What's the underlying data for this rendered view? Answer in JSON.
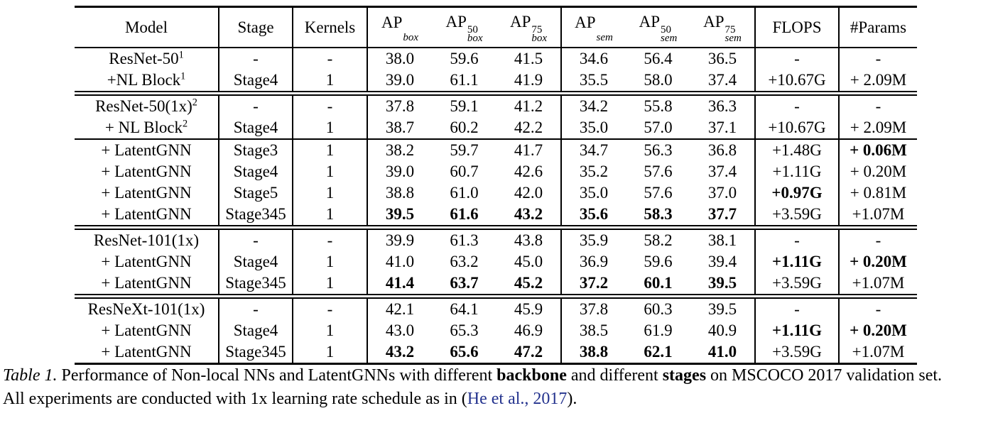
{
  "colors": {
    "text": "#000000",
    "rule": "#000000",
    "citation": "#24338e",
    "background": "#ffffff"
  },
  "table": {
    "header": {
      "model": "Model",
      "stage": "Stage",
      "kernels": "Kernels",
      "metrics": [
        {
          "base": "AP",
          "sup": "",
          "sub": "box"
        },
        {
          "base": "AP",
          "sup": "50",
          "sub": "box"
        },
        {
          "base": "AP",
          "sup": "75",
          "sub": "box"
        },
        {
          "base": "AP",
          "sup": "",
          "sub": "sem"
        },
        {
          "base": "AP",
          "sup": "50",
          "sub": "sem"
        },
        {
          "base": "AP",
          "sup": "75",
          "sub": "sem"
        }
      ],
      "flops": "FLOPS",
      "params": "#Params"
    },
    "groups": [
      {
        "rows": [
          {
            "model": {
              "text": "ResNet-50",
              "sup": "1"
            },
            "stage": "-",
            "kernels": "-",
            "cells": [
              {
                "t": "38.0"
              },
              {
                "t": "59.6"
              },
              {
                "t": "41.5"
              },
              {
                "t": "34.6"
              },
              {
                "t": "56.4"
              },
              {
                "t": "36.5"
              },
              {
                "t": "-"
              },
              {
                "t": "-"
              }
            ]
          },
          {
            "model": {
              "text": "+NL Block",
              "sup": "1"
            },
            "stage": "Stage4",
            "kernels": "1",
            "cells": [
              {
                "t": "39.0"
              },
              {
                "t": "61.1"
              },
              {
                "t": "41.9"
              },
              {
                "t": "35.5"
              },
              {
                "t": "58.0"
              },
              {
                "t": "37.4"
              },
              {
                "t": "+10.67G"
              },
              {
                "t": "+ 2.09M"
              }
            ]
          }
        ]
      },
      {
        "rows": [
          {
            "model": {
              "text": "ResNet-50(1x)",
              "sup": "2"
            },
            "stage": "-",
            "kernels": "-",
            "cells": [
              {
                "t": "37.8"
              },
              {
                "t": "59.1"
              },
              {
                "t": "41.2"
              },
              {
                "t": "34.2"
              },
              {
                "t": "55.8"
              },
              {
                "t": "36.3"
              },
              {
                "t": "-"
              },
              {
                "t": "-"
              }
            ]
          },
          {
            "model": {
              "text": "+ NL Block",
              "sup": "2"
            },
            "stage": "Stage4",
            "kernels": "1",
            "cells": [
              {
                "t": "38.7"
              },
              {
                "t": "60.2"
              },
              {
                "t": "42.2"
              },
              {
                "t": "35.0"
              },
              {
                "t": "57.0"
              },
              {
                "t": "37.1"
              },
              {
                "t": "+10.67G"
              },
              {
                "t": "+ 2.09M"
              }
            ]
          },
          {
            "model": {
              "text": "+ LatentGNN",
              "sup": ""
            },
            "stage": "Stage3",
            "kernels": "1",
            "rule_above": true,
            "cells": [
              {
                "t": "38.2"
              },
              {
                "t": "59.7"
              },
              {
                "t": "41.7"
              },
              {
                "t": "34.7"
              },
              {
                "t": "56.3"
              },
              {
                "t": "36.8"
              },
              {
                "t": "+1.48G"
              },
              {
                "t": "+ 0.06M",
                "b": true
              }
            ]
          },
          {
            "model": {
              "text": "+ LatentGNN",
              "sup": ""
            },
            "stage": "Stage4",
            "kernels": "1",
            "cells": [
              {
                "t": "39.0"
              },
              {
                "t": "60.7"
              },
              {
                "t": "42.6"
              },
              {
                "t": "35.2"
              },
              {
                "t": "57.6"
              },
              {
                "t": "37.4"
              },
              {
                "t": "+1.11G"
              },
              {
                "t": "+ 0.20M"
              }
            ]
          },
          {
            "model": {
              "text": "+ LatentGNN",
              "sup": ""
            },
            "stage": "Stage5",
            "kernels": "1",
            "cells": [
              {
                "t": "38.8"
              },
              {
                "t": "61.0"
              },
              {
                "t": "42.0"
              },
              {
                "t": "35.0"
              },
              {
                "t": "57.6"
              },
              {
                "t": "37.0"
              },
              {
                "t": "+0.97G",
                "b": true
              },
              {
                "t": "+ 0.81M"
              }
            ]
          },
          {
            "model": {
              "text": "+ LatentGNN",
              "sup": ""
            },
            "stage": "Stage345",
            "kernels": "1",
            "cells": [
              {
                "t": "39.5",
                "b": true
              },
              {
                "t": "61.6",
                "b": true
              },
              {
                "t": "43.2",
                "b": true
              },
              {
                "t": "35.6",
                "b": true
              },
              {
                "t": "58.3",
                "b": true
              },
              {
                "t": "37.7",
                "b": true
              },
              {
                "t": "+3.59G"
              },
              {
                "t": "+1.07M"
              }
            ]
          }
        ]
      },
      {
        "rows": [
          {
            "model": {
              "text": "ResNet-101(1x)",
              "sup": ""
            },
            "stage": "-",
            "kernels": "-",
            "cells": [
              {
                "t": "39.9"
              },
              {
                "t": "61.3"
              },
              {
                "t": "43.8"
              },
              {
                "t": "35.9"
              },
              {
                "t": "58.2"
              },
              {
                "t": "38.1"
              },
              {
                "t": "-"
              },
              {
                "t": "-"
              }
            ]
          },
          {
            "model": {
              "text": "+ LatentGNN",
              "sup": ""
            },
            "stage": "Stage4",
            "kernels": "1",
            "cells": [
              {
                "t": "41.0"
              },
              {
                "t": "63.2"
              },
              {
                "t": "45.0"
              },
              {
                "t": "36.9"
              },
              {
                "t": "59.6"
              },
              {
                "t": "39.4"
              },
              {
                "t": "+1.11G",
                "b": true
              },
              {
                "t": "+ 0.20M",
                "b": true
              }
            ]
          },
          {
            "model": {
              "text": "+ LatentGNN",
              "sup": ""
            },
            "stage": "Stage345",
            "kernels": "1",
            "cells": [
              {
                "t": "41.4",
                "b": true
              },
              {
                "t": "63.7",
                "b": true
              },
              {
                "t": "45.2",
                "b": true
              },
              {
                "t": "37.2",
                "b": true
              },
              {
                "t": "60.1",
                "b": true
              },
              {
                "t": "39.5",
                "b": true
              },
              {
                "t": "+3.59G"
              },
              {
                "t": "+1.07M"
              }
            ]
          }
        ]
      },
      {
        "rows": [
          {
            "model": {
              "text": "ResNeXt-101(1x)",
              "sup": ""
            },
            "stage": "-",
            "kernels": "-",
            "cells": [
              {
                "t": "42.1"
              },
              {
                "t": "64.1"
              },
              {
                "t": "45.9"
              },
              {
                "t": "37.8"
              },
              {
                "t": "60.3"
              },
              {
                "t": "39.5"
              },
              {
                "t": "-"
              },
              {
                "t": "-"
              }
            ]
          },
          {
            "model": {
              "text": "+ LatentGNN",
              "sup": ""
            },
            "stage": "Stage4",
            "kernels": "1",
            "cells": [
              {
                "t": "43.0"
              },
              {
                "t": "65.3"
              },
              {
                "t": "46.9"
              },
              {
                "t": "38.5"
              },
              {
                "t": "61.9"
              },
              {
                "t": "40.9"
              },
              {
                "t": "+1.11G",
                "b": true
              },
              {
                "t": "+ 0.20M",
                "b": true
              }
            ]
          },
          {
            "model": {
              "text": "+ LatentGNN",
              "sup": ""
            },
            "stage": "Stage345",
            "kernels": "1",
            "cells": [
              {
                "t": "43.2",
                "b": true
              },
              {
                "t": "65.6",
                "b": true
              },
              {
                "t": "47.2",
                "b": true
              },
              {
                "t": "38.8",
                "b": true
              },
              {
                "t": "62.1",
                "b": true
              },
              {
                "t": "41.0",
                "b": true
              },
              {
                "t": "+3.59G"
              },
              {
                "t": "+1.07M"
              }
            ]
          }
        ]
      }
    ]
  },
  "caption": {
    "segments": [
      {
        "text": "Table 1.",
        "style": "italic"
      },
      {
        "text": " Performance of Non-local NNs and LatentGNNs with different ",
        "style": "normal"
      },
      {
        "text": "backbone",
        "style": "bold"
      },
      {
        "text": " and different ",
        "style": "normal"
      },
      {
        "text": "stages",
        "style": "bold"
      },
      {
        "text": " on MSCOCO 2017 validation set.",
        "style": "normal"
      },
      {
        "text": "",
        "style": "break"
      },
      {
        "text": "All experiments are conducted with 1x learning rate schedule as in (",
        "style": "normal"
      },
      {
        "text": "He et al., 2017",
        "style": "cite"
      },
      {
        "text": ").",
        "style": "normal"
      }
    ]
  }
}
